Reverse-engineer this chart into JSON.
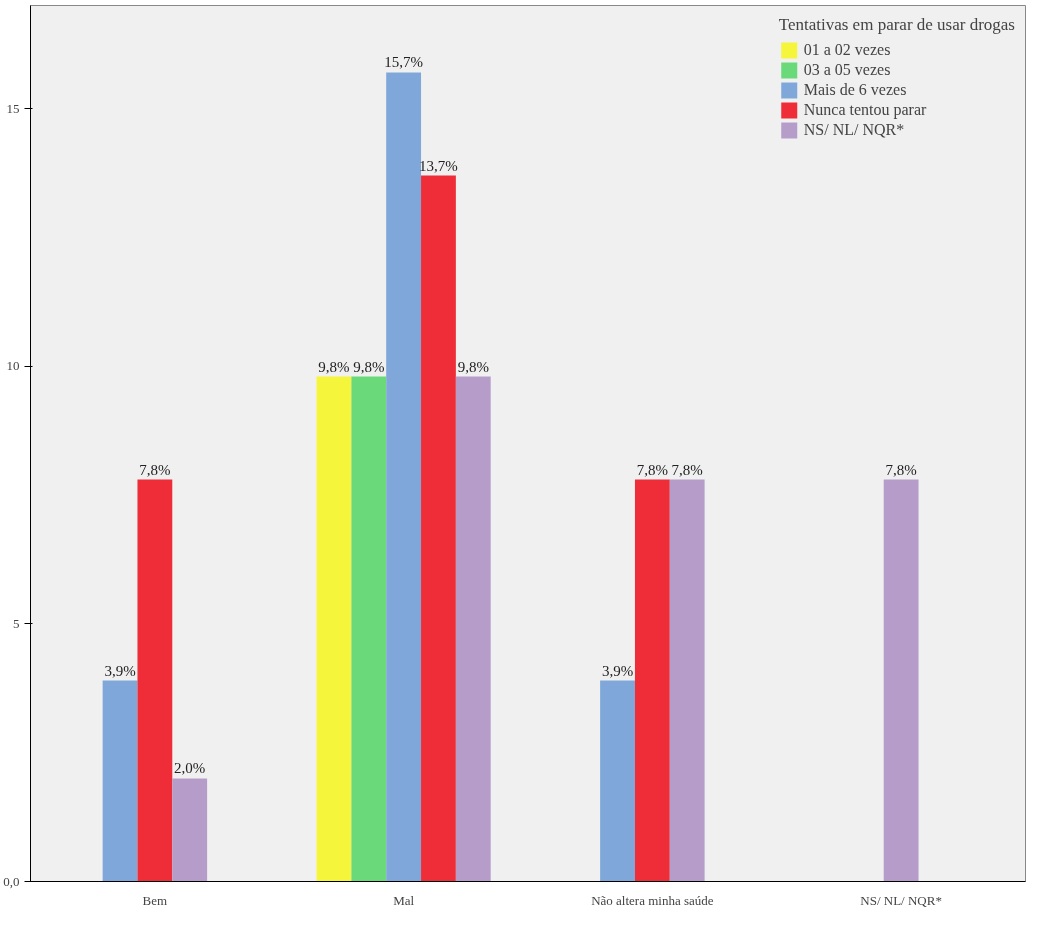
{
  "chart_data": {
    "type": "bar",
    "categories": [
      "Bem",
      "Mal",
      "Não altera minha saúde",
      "NS/ NL/ NQR*"
    ],
    "legend_title": "Tentativas em parar de usar drogas",
    "series": [
      {
        "name": "01 a 02 vezes",
        "color": "#f5f53c",
        "values": [
          null,
          9.8,
          null,
          null
        ],
        "value_labels": [
          null,
          "9,8%",
          null,
          null
        ]
      },
      {
        "name": "03 a 05 vezes",
        "color": "#6ad97a",
        "values": [
          null,
          9.8,
          null,
          null
        ],
        "value_labels": [
          null,
          "9,8%",
          null,
          null
        ]
      },
      {
        "name": "Mais de 6 vezes",
        "color": "#7fa7d9",
        "values": [
          3.9,
          15.7,
          3.9,
          null
        ],
        "value_labels": [
          "3,9%",
          "15,7%",
          "3,9%",
          null
        ]
      },
      {
        "name": "Nunca tentou parar",
        "color": "#ee2d38",
        "values": [
          7.8,
          13.7,
          7.8,
          null
        ],
        "value_labels": [
          "7,8%",
          "13,7%",
          "7,8%",
          null
        ]
      },
      {
        "name": "NS/ NL/ NQR*",
        "color": "#b59cc9",
        "values": [
          2.0,
          9.8,
          7.8,
          7.8
        ],
        "value_labels": [
          "2,0%",
          "9,8%",
          "7,8%",
          "7,8%"
        ]
      }
    ],
    "ylim": [
      0,
      17
    ],
    "yticks": [
      {
        "value": 0,
        "label": "0,0"
      },
      5,
      10,
      15
    ],
    "grid": false,
    "legend": "top right"
  }
}
